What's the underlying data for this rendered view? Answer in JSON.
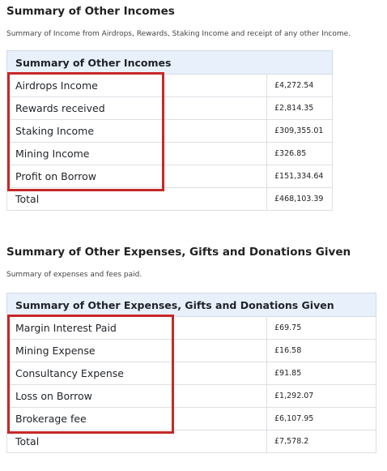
{
  "incomes": {
    "heading": "Summary of Other Incomes",
    "description": "Summary of Income from Airdrops, Rewards, Staking Income and receipt of any other Income.",
    "table_title": "Summary of Other Incomes",
    "rows": [
      {
        "label": "Airdrops Income",
        "amount": "£4,272.54"
      },
      {
        "label": "Rewards received",
        "amount": "£2,814.35"
      },
      {
        "label": "Staking Income",
        "amount": "£309,355.01"
      },
      {
        "label": "Mining Income",
        "amount": "£326.85"
      },
      {
        "label": "Profit on Borrow",
        "amount": "£151,334.64"
      },
      {
        "label": "Total",
        "amount": "£468,103.39"
      }
    ]
  },
  "expenses": {
    "heading": "Summary of Other Expenses, Gifts and Donations Given",
    "description": "Summary of expenses and fees paid.",
    "table_title": "Summary of Other Expenses, Gifts and Donations Given",
    "rows": [
      {
        "label": "Margin Interest Paid",
        "amount": "£69.75"
      },
      {
        "label": "Mining Expense",
        "amount": "£16.58"
      },
      {
        "label": "Consultancy Expense",
        "amount": "£91.85"
      },
      {
        "label": "Loss on Borrow",
        "amount": "£1,292.07"
      },
      {
        "label": "Brokerage fee",
        "amount": "£6,107.95"
      },
      {
        "label": "Total",
        "amount": "£7,578.2"
      }
    ]
  },
  "highlight_color": "#c62828",
  "header_bg": "#e8f0fb"
}
